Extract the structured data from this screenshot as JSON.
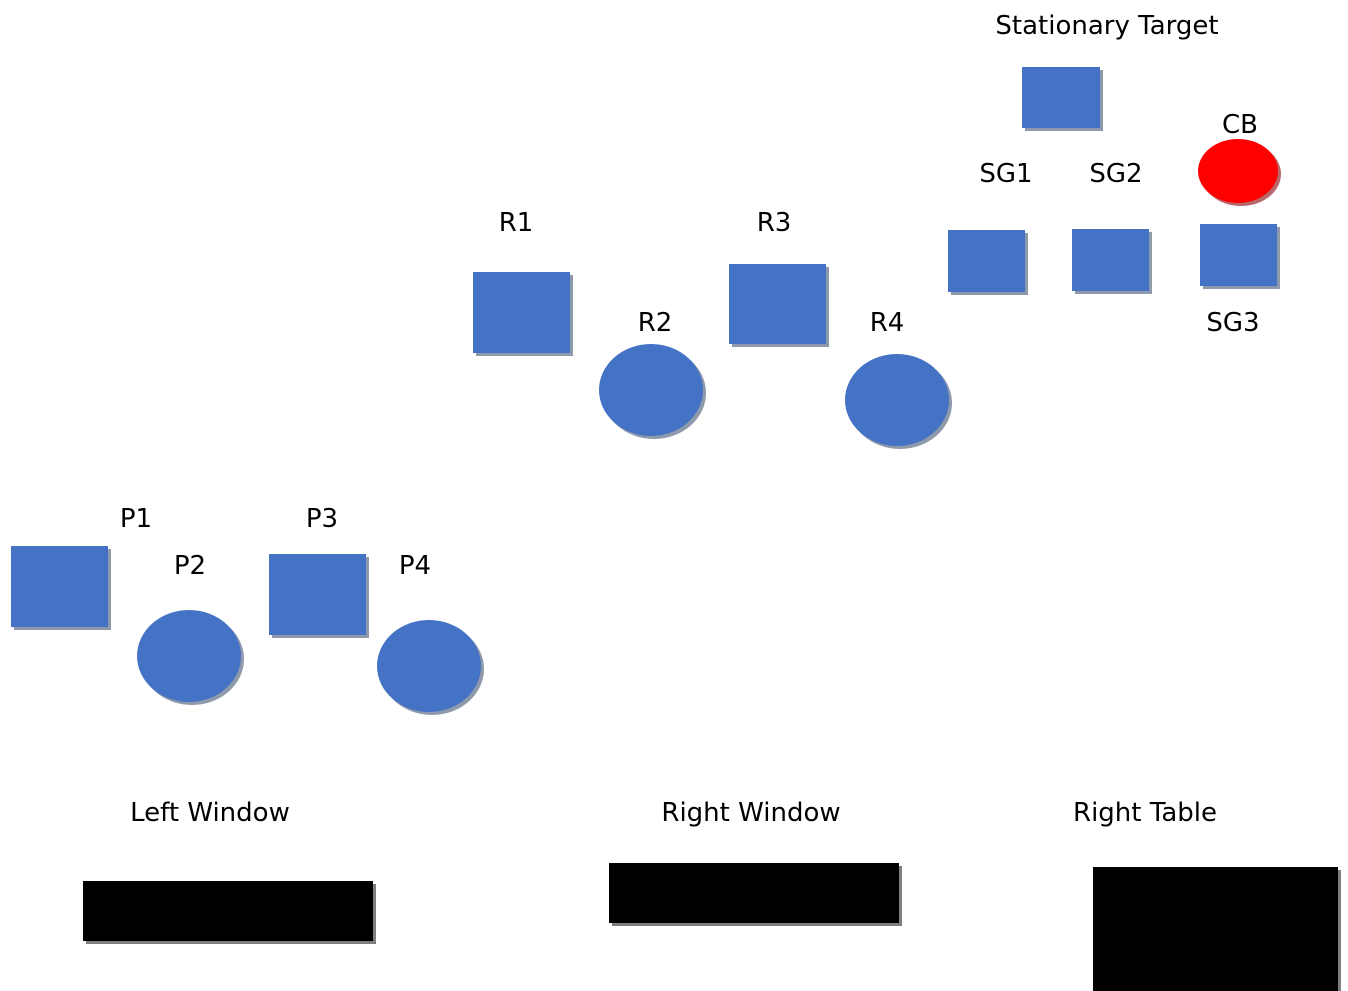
{
  "colors": {
    "shape_fill": "#4472C4",
    "shape_shadow": "#8E99AC",
    "highlight_fill": "#FF0000",
    "highlight_shadow": "#B8676A",
    "block_fill": "#000000",
    "block_shadow": "#7F7F7F",
    "text": "#000000"
  },
  "groups": {
    "stationary": {
      "title": "Stationary Target",
      "target_shape": "square",
      "items": [
        {
          "label": "SG1",
          "shape": "square"
        },
        {
          "label": "SG2",
          "shape": "square"
        },
        {
          "label": "SG3",
          "shape": "square"
        },
        {
          "label": "CB",
          "shape": "circle",
          "highlight": true
        }
      ]
    },
    "r_row": {
      "items": [
        {
          "label": "R1",
          "shape": "square"
        },
        {
          "label": "R2",
          "shape": "circle"
        },
        {
          "label": "R3",
          "shape": "square"
        },
        {
          "label": "R4",
          "shape": "circle"
        }
      ]
    },
    "p_row": {
      "items": [
        {
          "label": "P1",
          "shape": "square"
        },
        {
          "label": "P2",
          "shape": "circle"
        },
        {
          "label": "P3",
          "shape": "square"
        },
        {
          "label": "P4",
          "shape": "circle"
        }
      ]
    }
  },
  "areas": [
    {
      "label": "Left Window"
    },
    {
      "label": "Right Window"
    },
    {
      "label": "Right Table"
    }
  ]
}
